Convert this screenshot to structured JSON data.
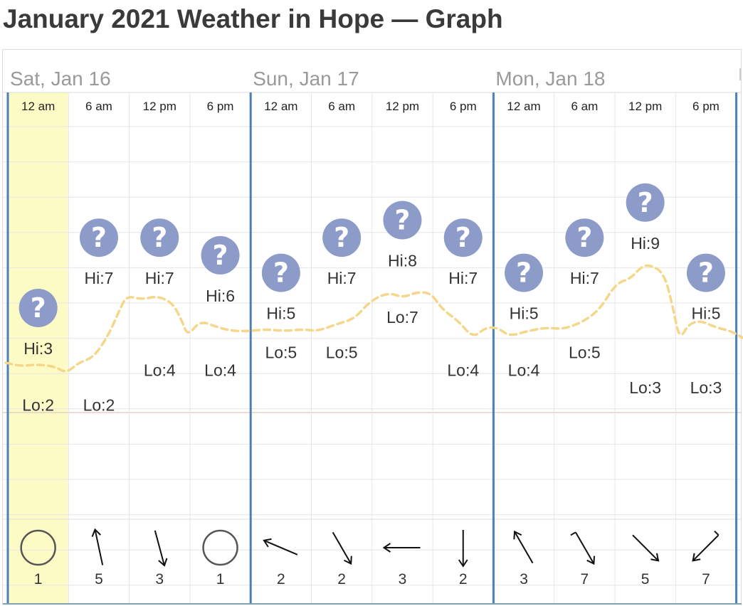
{
  "page": {
    "title": "January 2021 Weather in Hope — Graph"
  },
  "colors": {
    "highlight": "#fdfbc5",
    "day_divider": "#4a80b8",
    "grid": "#e6e6e6",
    "temp_line": "#f4d78a",
    "zero_line": "#e8cfc4",
    "icon_fill": "#8d9bc8"
  },
  "chart_data": {
    "type": "line",
    "title": "January 2021 Weather in Hope — Graph",
    "days": [
      "Sat, Jan 16",
      "Sun, Jan 17",
      "Mon, Jan 18"
    ],
    "slots": [
      {
        "day": "Sat, Jan 16",
        "time": "12 am",
        "hi": "Hi:3",
        "lo": "Lo:2",
        "hi_val": 3,
        "lo_val": 2,
        "icon": "question-icon",
        "wind_dir_deg": null,
        "wind_icon": "calm-circle-icon",
        "wind_speed": "1",
        "highlighted": true
      },
      {
        "day": "Sat, Jan 16",
        "time": "6 am",
        "hi": "Hi:7",
        "lo": "Lo:2",
        "hi_val": 7,
        "lo_val": 2,
        "icon": "question-icon",
        "wind_dir_deg": -12,
        "wind_icon": "wind-arrow-icon",
        "wind_speed": "5",
        "highlighted": false
      },
      {
        "day": "Sat, Jan 16",
        "time": "12 pm",
        "hi": "Hi:7",
        "lo": "Lo:4",
        "hi_val": 7,
        "lo_val": 4,
        "icon": "question-icon",
        "wind_dir_deg": 165,
        "wind_icon": "wind-arrow-icon",
        "wind_speed": "3",
        "highlighted": false
      },
      {
        "day": "Sat, Jan 16",
        "time": "6 pm",
        "hi": "Hi:6",
        "lo": "Lo:4",
        "hi_val": 6,
        "lo_val": 4,
        "icon": "question-icon",
        "wind_dir_deg": null,
        "wind_icon": "calm-circle-icon",
        "wind_speed": "1",
        "highlighted": false
      },
      {
        "day": "Sun, Jan 17",
        "time": "12 am",
        "hi": "Hi:5",
        "lo": "Lo:5",
        "hi_val": 5,
        "lo_val": 5,
        "icon": "question-icon",
        "wind_dir_deg": -67,
        "wind_icon": "wind-arrow-icon",
        "wind_speed": "2",
        "highlighted": false
      },
      {
        "day": "Sun, Jan 17",
        "time": "6 am",
        "hi": "Hi:7",
        "lo": "Lo:5",
        "hi_val": 7,
        "lo_val": 5,
        "icon": "question-icon",
        "wind_dir_deg": 150,
        "wind_icon": "wind-arrow-icon",
        "wind_speed": "2",
        "highlighted": false
      },
      {
        "day": "Sun, Jan 17",
        "time": "12 pm",
        "hi": "Hi:8",
        "lo": "Lo:7",
        "hi_val": 8,
        "lo_val": 7,
        "icon": "question-icon",
        "wind_dir_deg": -90,
        "wind_icon": "wind-arrow-icon",
        "wind_speed": "3",
        "highlighted": false
      },
      {
        "day": "Sun, Jan 17",
        "time": "6 pm",
        "hi": "Hi:7",
        "lo": "Lo:4",
        "hi_val": 7,
        "lo_val": 4,
        "icon": "question-icon",
        "wind_dir_deg": 180,
        "wind_icon": "wind-arrow-icon",
        "wind_speed": "2",
        "highlighted": false
      },
      {
        "day": "Mon, Jan 18",
        "time": "12 am",
        "hi": "Hi:5",
        "lo": "Lo:4",
        "hi_val": 5,
        "lo_val": 4,
        "icon": "question-icon",
        "wind_dir_deg": -30,
        "wind_icon": "wind-arrow-icon",
        "wind_speed": "3",
        "highlighted": false
      },
      {
        "day": "Mon, Jan 18",
        "time": "6 am",
        "hi": "Hi:7",
        "lo": "Lo:5",
        "hi_val": 7,
        "lo_val": 5,
        "icon": "question-icon",
        "wind_dir_deg": 150,
        "wind_icon": "wind-arrow-icon",
        "wind_speed": "7",
        "highlighted": false
      },
      {
        "day": "Mon, Jan 18",
        "time": "12 pm",
        "hi": "Hi:9",
        "lo": "Lo:3",
        "hi_val": 9,
        "lo_val": 3,
        "icon": "question-icon",
        "wind_dir_deg": 135,
        "wind_icon": "wind-arrow-icon",
        "wind_speed": "5",
        "highlighted": false
      },
      {
        "day": "Mon, Jan 18",
        "time": "6 pm",
        "hi": "Hi:5",
        "lo": "Lo:3",
        "hi_val": 5,
        "lo_val": 3,
        "icon": "question-icon",
        "wind_dir_deg": -135,
        "wind_icon": "wind-arrow-icon",
        "wind_speed": "7",
        "highlighted": false
      }
    ],
    "temperature_series": [
      [
        0,
        3.0
      ],
      [
        0.25,
        2.8
      ],
      [
        0.5,
        2.9
      ],
      [
        0.8,
        2.8
      ],
      [
        1.0,
        2.4
      ],
      [
        1.2,
        3.0
      ],
      [
        1.45,
        3.3
      ],
      [
        1.7,
        4.6
      ],
      [
        1.9,
        6.2
      ],
      [
        2.0,
        6.8
      ],
      [
        2.25,
        6.6
      ],
      [
        2.5,
        6.8
      ],
      [
        2.75,
        6.4
      ],
      [
        2.9,
        5.4
      ],
      [
        3.0,
        4.5
      ],
      [
        3.2,
        5.4
      ],
      [
        3.5,
        5.0
      ],
      [
        3.75,
        4.8
      ],
      [
        4.0,
        4.8
      ],
      [
        4.3,
        4.9
      ],
      [
        4.6,
        4.8
      ],
      [
        4.9,
        4.9
      ],
      [
        5.15,
        4.8
      ],
      [
        5.45,
        5.2
      ],
      [
        5.75,
        5.5
      ],
      [
        6.0,
        6.5
      ],
      [
        6.3,
        7.0
      ],
      [
        6.55,
        6.7
      ],
      [
        6.75,
        7.0
      ],
      [
        7.0,
        7.0
      ],
      [
        7.2,
        6.0
      ],
      [
        7.45,
        5.4
      ],
      [
        7.7,
        4.4
      ],
      [
        7.9,
        5.0
      ],
      [
        8.1,
        5.0
      ],
      [
        8.3,
        4.5
      ],
      [
        8.6,
        4.8
      ],
      [
        8.9,
        5.0
      ],
      [
        9.2,
        4.9
      ],
      [
        9.55,
        5.4
      ],
      [
        9.8,
        6.1
      ],
      [
        10.05,
        7.5
      ],
      [
        10.3,
        7.8
      ],
      [
        10.45,
        8.4
      ],
      [
        10.6,
        8.6
      ],
      [
        10.85,
        8.1
      ],
      [
        11.0,
        6.0
      ],
      [
        11.1,
        4.3
      ],
      [
        11.25,
        5.2
      ],
      [
        11.45,
        5.4
      ],
      [
        11.7,
        5.0
      ],
      [
        11.95,
        4.8
      ],
      [
        12.2,
        4.4
      ]
    ],
    "ylim": [
      -5,
      14
    ]
  }
}
